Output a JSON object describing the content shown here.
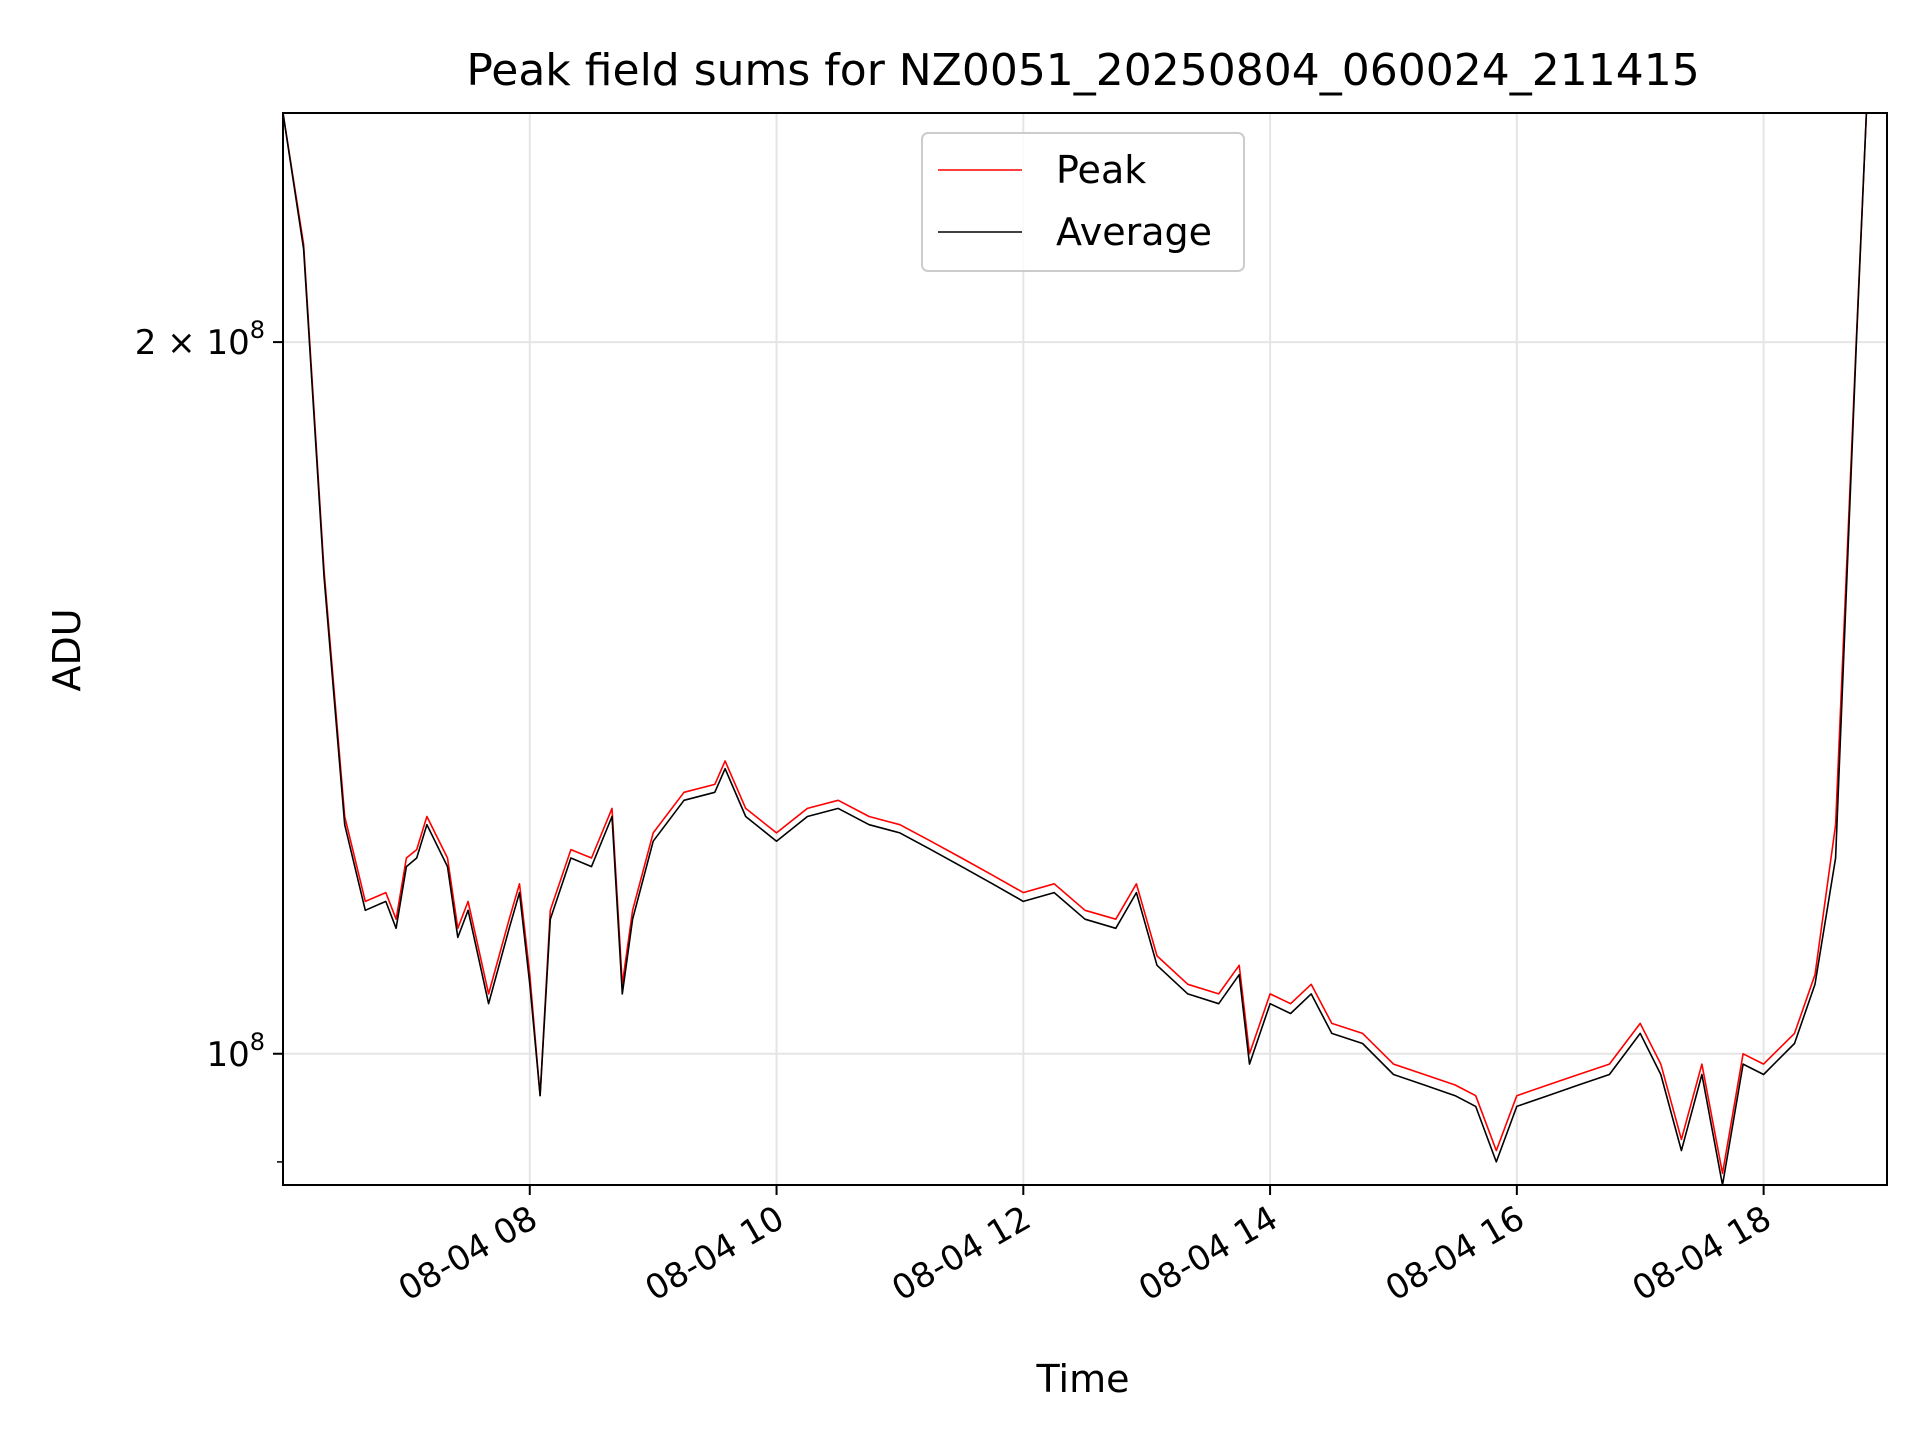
{
  "chart_data": {
    "type": "line",
    "title": "Peak field sums for NZ0051_20250804_060024_211415",
    "xlabel": "Time",
    "ylabel": "ADU",
    "x_ticks": [
      "08-04 08",
      "08-04 10",
      "08-04 12",
      "08-04 14",
      "08-04 16",
      "08-04 18"
    ],
    "y_ticks": [
      {
        "value": 200000000,
        "mantissa": "2",
        "times": "×",
        "base": "10",
        "exp": "8"
      },
      {
        "value": 100000000,
        "mantissa": "",
        "times": "",
        "base": "10",
        "exp": "8"
      }
    ],
    "y_scale": "log",
    "ylim": [
      88000000,
      250000000
    ],
    "xlim": [
      "2025-08-04 06:00",
      "2025-08-04 19:00"
    ],
    "grid": true,
    "legend": {
      "location": "top-center",
      "entries": [
        {
          "name": "Peak",
          "color": "#ff0000"
        },
        {
          "name": "Average",
          "color": "#000000"
        }
      ]
    },
    "series": [
      {
        "name": "Peak",
        "color": "#ff0000",
        "x": [
          "2025-08-04 06:00",
          "2025-08-04 06:10",
          "2025-08-04 06:20",
          "2025-08-04 06:30",
          "2025-08-04 06:40",
          "2025-08-04 06:50",
          "2025-08-04 06:55",
          "2025-08-04 07:00",
          "2025-08-04 07:05",
          "2025-08-04 07:10",
          "2025-08-04 07:20",
          "2025-08-04 07:25",
          "2025-08-04 07:30",
          "2025-08-04 07:40",
          "2025-08-04 07:50",
          "2025-08-04 07:55",
          "2025-08-04 08:00",
          "2025-08-04 08:05",
          "2025-08-04 08:10",
          "2025-08-04 08:20",
          "2025-08-04 08:30",
          "2025-08-04 08:40",
          "2025-08-04 08:45",
          "2025-08-04 08:50",
          "2025-08-04 09:00",
          "2025-08-04 09:15",
          "2025-08-04 09:30",
          "2025-08-04 09:35",
          "2025-08-04 09:45",
          "2025-08-04 10:00",
          "2025-08-04 10:15",
          "2025-08-04 10:30",
          "2025-08-04 10:45",
          "2025-08-04 11:00",
          "2025-08-04 11:15",
          "2025-08-04 11:30",
          "2025-08-04 11:45",
          "2025-08-04 12:00",
          "2025-08-04 12:15",
          "2025-08-04 12:30",
          "2025-08-04 12:45",
          "2025-08-04 12:55",
          "2025-08-04 13:05",
          "2025-08-04 13:20",
          "2025-08-04 13:35",
          "2025-08-04 13:45",
          "2025-08-04 13:50",
          "2025-08-04 14:00",
          "2025-08-04 14:10",
          "2025-08-04 14:20",
          "2025-08-04 14:30",
          "2025-08-04 14:45",
          "2025-08-04 15:00",
          "2025-08-04 15:15",
          "2025-08-04 15:30",
          "2025-08-04 15:40",
          "2025-08-04 15:50",
          "2025-08-04 16:00",
          "2025-08-04 16:15",
          "2025-08-04 16:30",
          "2025-08-04 16:45",
          "2025-08-04 17:00",
          "2025-08-04 17:10",
          "2025-08-04 17:20",
          "2025-08-04 17:30",
          "2025-08-04 17:40",
          "2025-08-04 17:50",
          "2025-08-04 18:00",
          "2025-08-04 18:15",
          "2025-08-04 18:25",
          "2025-08-04 18:35",
          "2025-08-04 18:45",
          "2025-08-04 18:50"
        ],
        "values": [
          250000000,
          220000000,
          160000000,
          126000000,
          116000000,
          117000000,
          114000000,
          121000000,
          122000000,
          126000000,
          121000000,
          113000000,
          116000000,
          106000000,
          114000000,
          118000000,
          108000000,
          96000000,
          115000000,
          122000000,
          121000000,
          127000000,
          107000000,
          115000000,
          124000000,
          129000000,
          130000000,
          133000000,
          127000000,
          124000000,
          127000000,
          128000000,
          126000000,
          125000000,
          123000000,
          121000000,
          119000000,
          117000000,
          118000000,
          115000000,
          114000000,
          118000000,
          110000000,
          107000000,
          106000000,
          109000000,
          100000000,
          106000000,
          105000000,
          107000000,
          103000000,
          102000000,
          99000000,
          98000000,
          97000000,
          96000000,
          91000000,
          96000000,
          97000000,
          98000000,
          99000000,
          103000000,
          99000000,
          92000000,
          99000000,
          89000000,
          100000000,
          99000000,
          102000000,
          108000000,
          125000000,
          200000000,
          250000000
        ]
      },
      {
        "name": "Average",
        "color": "#000000",
        "x": [
          "2025-08-04 06:00",
          "2025-08-04 06:10",
          "2025-08-04 06:20",
          "2025-08-04 06:30",
          "2025-08-04 06:40",
          "2025-08-04 06:50",
          "2025-08-04 06:55",
          "2025-08-04 07:00",
          "2025-08-04 07:05",
          "2025-08-04 07:10",
          "2025-08-04 07:20",
          "2025-08-04 07:25",
          "2025-08-04 07:30",
          "2025-08-04 07:40",
          "2025-08-04 07:50",
          "2025-08-04 07:55",
          "2025-08-04 08:00",
          "2025-08-04 08:05",
          "2025-08-04 08:10",
          "2025-08-04 08:20",
          "2025-08-04 08:30",
          "2025-08-04 08:40",
          "2025-08-04 08:45",
          "2025-08-04 08:50",
          "2025-08-04 09:00",
          "2025-08-04 09:15",
          "2025-08-04 09:30",
          "2025-08-04 09:35",
          "2025-08-04 09:45",
          "2025-08-04 10:00",
          "2025-08-04 10:15",
          "2025-08-04 10:30",
          "2025-08-04 10:45",
          "2025-08-04 11:00",
          "2025-08-04 11:15",
          "2025-08-04 11:30",
          "2025-08-04 11:45",
          "2025-08-04 12:00",
          "2025-08-04 12:15",
          "2025-08-04 12:30",
          "2025-08-04 12:45",
          "2025-08-04 12:55",
          "2025-08-04 13:05",
          "2025-08-04 13:20",
          "2025-08-04 13:35",
          "2025-08-04 13:45",
          "2025-08-04 13:50",
          "2025-08-04 14:00",
          "2025-08-04 14:10",
          "2025-08-04 14:20",
          "2025-08-04 14:30",
          "2025-08-04 14:45",
          "2025-08-04 15:00",
          "2025-08-04 15:15",
          "2025-08-04 15:30",
          "2025-08-04 15:40",
          "2025-08-04 15:50",
          "2025-08-04 16:00",
          "2025-08-04 16:15",
          "2025-08-04 16:30",
          "2025-08-04 16:45",
          "2025-08-04 17:00",
          "2025-08-04 17:10",
          "2025-08-04 17:20",
          "2025-08-04 17:30",
          "2025-08-04 17:40",
          "2025-08-04 17:50",
          "2025-08-04 18:00",
          "2025-08-04 18:15",
          "2025-08-04 18:25",
          "2025-08-04 18:35",
          "2025-08-04 18:45",
          "2025-08-04 18:50"
        ],
        "values": [
          250000000,
          219000000,
          159000000,
          125000000,
          115000000,
          116000000,
          113000000,
          120000000,
          121000000,
          125000000,
          120000000,
          112000000,
          115000000,
          105000000,
          113000000,
          117000000,
          107000000,
          96000000,
          114000000,
          121000000,
          120000000,
          126000000,
          106000000,
          114000000,
          123000000,
          128000000,
          129000000,
          132000000,
          126000000,
          123000000,
          126000000,
          127000000,
          125000000,
          124000000,
          122000000,
          120000000,
          118000000,
          116000000,
          117000000,
          114000000,
          113000000,
          117000000,
          109000000,
          106000000,
          105000000,
          108000000,
          99000000,
          105000000,
          104000000,
          106000000,
          102000000,
          101000000,
          98000000,
          97000000,
          96000000,
          95000000,
          90000000,
          95000000,
          96000000,
          97000000,
          98000000,
          102000000,
          98000000,
          91000000,
          98000000,
          88000000,
          99000000,
          98000000,
          101000000,
          107000000,
          121000000,
          199000000,
          250000000
        ]
      }
    ]
  }
}
